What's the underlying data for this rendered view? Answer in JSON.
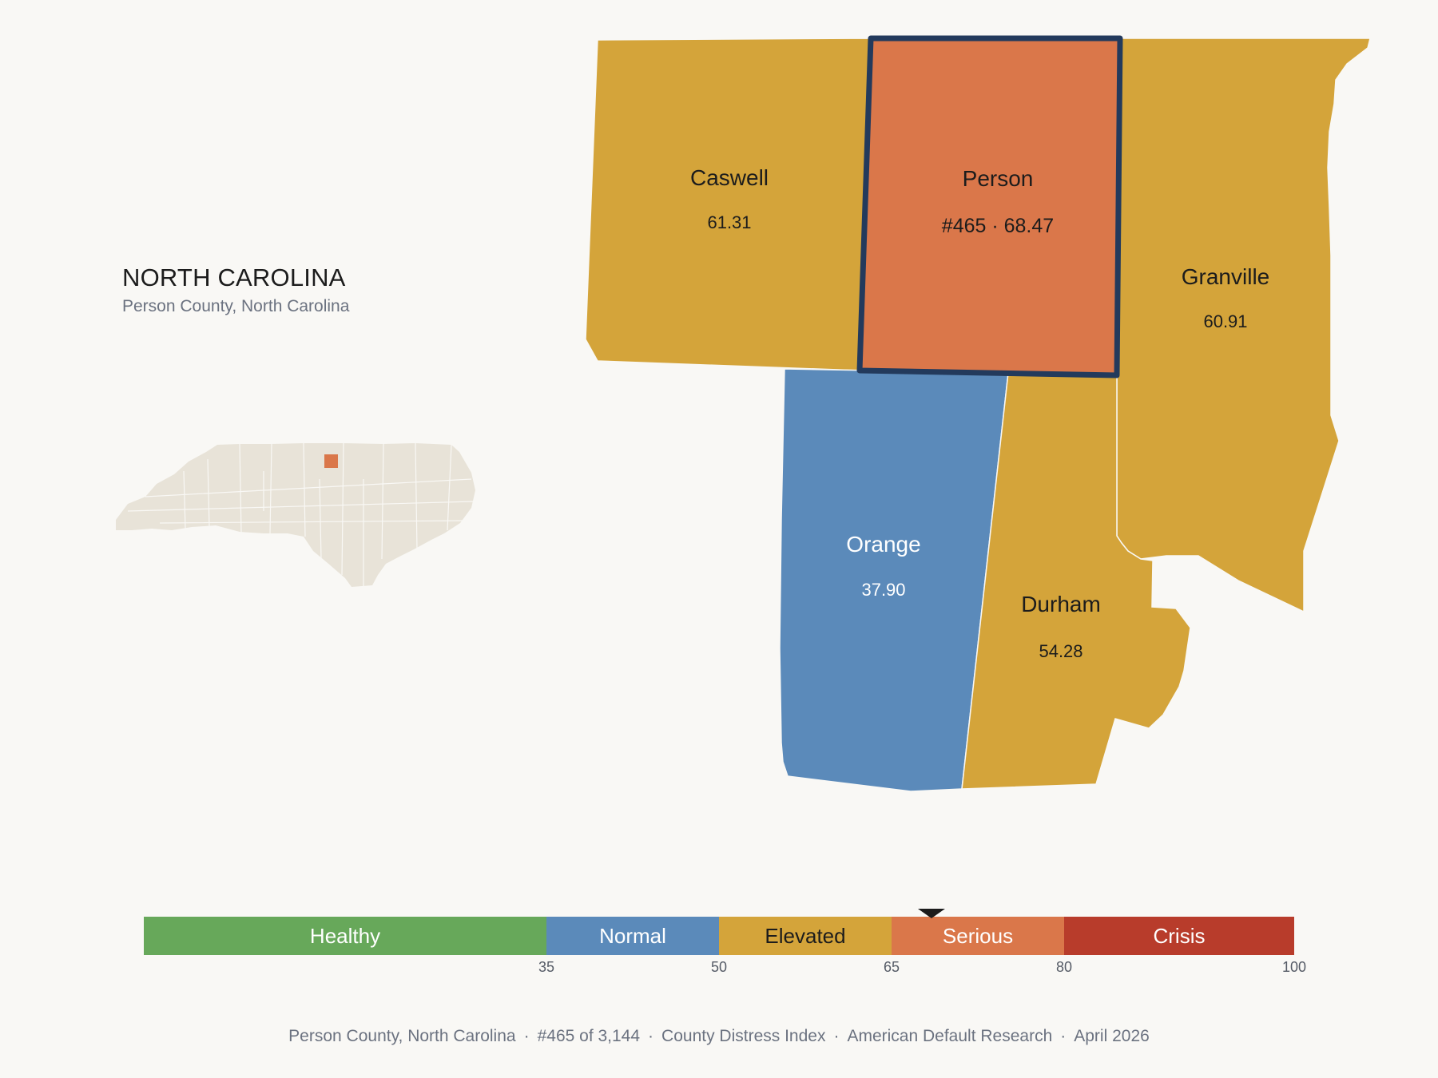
{
  "header": {
    "state_name": "NORTH CAROLINA",
    "subtitle": "Person County, North Carolina"
  },
  "counties": [
    {
      "name": "Caswell",
      "value": "61.31",
      "category": "Elevated"
    },
    {
      "name": "Person",
      "value": "#465 · 68.47",
      "category": "Serious",
      "highlighted": true
    },
    {
      "name": "Granville",
      "value": "60.91",
      "category": "Elevated"
    },
    {
      "name": "Orange",
      "value": "37.90",
      "category": "Normal"
    },
    {
      "name": "Durham",
      "value": "54.28",
      "category": "Elevated"
    }
  ],
  "colors": {
    "Healthy": "#67a85a",
    "Normal": "#5b8aba",
    "Elevated": "#d4a43a",
    "Serious": "#da774a",
    "Crisis": "#b83c2b",
    "highlight_border": "#233a5c",
    "inset_land": "#e8e3d8"
  },
  "scale": {
    "min": 0,
    "max": 100,
    "marker_value": 68.47,
    "segments": [
      {
        "label": "Healthy",
        "from": 0,
        "to": 35
      },
      {
        "label": "Normal",
        "from": 35,
        "to": 50
      },
      {
        "label": "Elevated",
        "from": 50,
        "to": 65
      },
      {
        "label": "Serious",
        "from": 65,
        "to": 80
      },
      {
        "label": "Crisis",
        "from": 80,
        "to": 100
      }
    ],
    "ticks": [
      "35",
      "50",
      "65",
      "80",
      "100"
    ]
  },
  "footer": {
    "items": [
      "Person County, North Carolina",
      "#465 of 3,144",
      "County Distress Index",
      "American Default Research",
      "April 2026"
    ]
  }
}
